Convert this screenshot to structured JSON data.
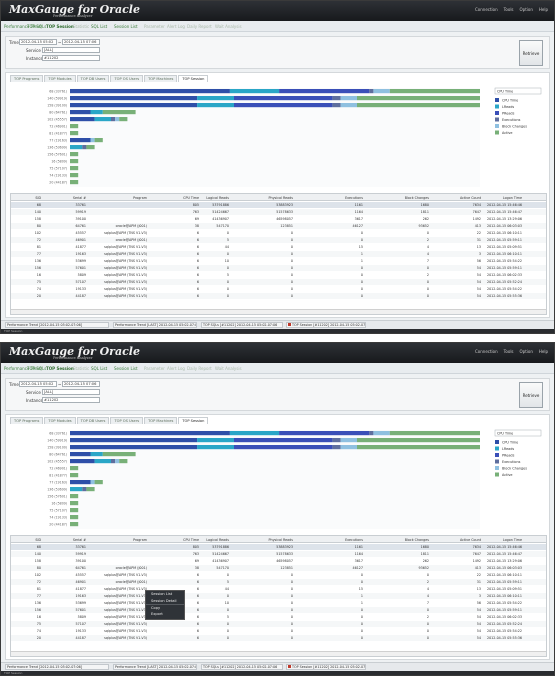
{
  "app": {
    "logo_text": "MaxGauge for Oracle",
    "logo_subtitle": "Performance Analyzer",
    "top_menu": [
      "Connection",
      "Tools",
      "Option",
      "Help"
    ]
  },
  "nav": {
    "items": [
      "Performance Trend",
      "TOP SQLs",
      "TOP Session",
      "Statistic",
      "SQL List",
      "Session List",
      "Parameter",
      "Alert Log",
      "Daily Report",
      "Wait Analysis"
    ],
    "active_index": 2,
    "dim_indexes": [
      3,
      6,
      7,
      8,
      9
    ]
  },
  "filter": {
    "time_label": "Time",
    "time_from": "2012-04-15 05:02",
    "time_to": "2012-04-15 07:06",
    "service_label": "Service",
    "service_value": "[ALL]",
    "instance_label": "Instance",
    "instance_value": "#11202",
    "retrieve_label": "Retrieve"
  },
  "sub_tabs": [
    "TOP Programs",
    "TOP Modules",
    "TOP DB Users",
    "TOP OS Users",
    "TOP Machines",
    "TOP Session"
  ],
  "sub_tab_active": 5,
  "legend": {
    "dropdown": "CPU Time",
    "items": [
      {
        "label": "CPU Time",
        "color": "#2e4fa8"
      },
      {
        "label": "LReads",
        "color": "#2aa6c7"
      },
      {
        "label": "PReads",
        "color": "#3a4fb8"
      },
      {
        "label": "Executions",
        "color": "#5e6e9e"
      },
      {
        "label": "Block Changes",
        "color": "#8fc0e0"
      },
      {
        "label": "Active",
        "color": "#78b078"
      }
    ]
  },
  "chart_data": {
    "type": "bar",
    "orientation": "horizontal-stacked",
    "categories": [
      "68 (33761)",
      "140 (59919)",
      "158 (39100)",
      "80 (64761)",
      "102 (45557)",
      "72 (46901)",
      "81 (41877)",
      "77 (19163)",
      "136 (53699)",
      "156 (57601)",
      "16 (5809)",
      "75 (57107)",
      "74 (19133)",
      "20 (44187)"
    ],
    "series": [
      {
        "name": "CPU Time",
        "color": "#2e4fa8",
        "values": [
          39,
          31,
          31,
          5,
          6,
          0,
          0,
          5,
          0,
          0,
          0,
          0,
          0,
          0
        ]
      },
      {
        "name": "LReads",
        "color": "#2aa6c7",
        "values": [
          12,
          9,
          9,
          3,
          4,
          0,
          0,
          0,
          3,
          0,
          0,
          0,
          0,
          0
        ]
      },
      {
        "name": "PReads",
        "color": "#3a4fb8",
        "values": [
          22,
          24,
          24,
          0,
          0,
          0,
          0,
          0,
          0,
          0,
          0,
          0,
          0,
          0
        ]
      },
      {
        "name": "Executions",
        "color": "#5e6e9e",
        "values": [
          1,
          2,
          2,
          0,
          1,
          0,
          0,
          0,
          1,
          0,
          0,
          0,
          0,
          0
        ]
      },
      {
        "name": "Block Changes",
        "color": "#8fc0e0",
        "values": [
          4,
          4,
          4,
          0,
          1,
          0,
          0,
          1,
          0,
          0,
          0,
          0,
          0,
          0
        ]
      },
      {
        "name": "Active",
        "color": "#78b078",
        "values": [
          22,
          30,
          30,
          8,
          2,
          2,
          2,
          2,
          2,
          2,
          2,
          2,
          2,
          2
        ]
      }
    ],
    "xlim": [
      0,
      100
    ],
    "legend_position": "right"
  },
  "table": {
    "columns": [
      "SID",
      "Serial #",
      "Program",
      "CPU Time",
      "Logical Reads",
      "Physical Reads",
      "Executions",
      "Block Changes",
      "Active Count",
      "Logon Time"
    ],
    "rows": [
      [
        "68",
        "33761",
        "",
        "805",
        "53791886",
        "53883923",
        "1161",
        "1680",
        "7634",
        "2012-04-15 15:46:46"
      ],
      [
        "140",
        "59919",
        "",
        "763",
        "51424667",
        "51578633",
        "1164",
        "1811",
        "7647",
        "2012-04-15 15:46:47"
      ],
      [
        "158",
        "39100",
        "",
        "69",
        "41436907",
        "46598057",
        "3617",
        "262",
        "1492",
        "2012-04-15 13:29:06"
      ],
      [
        "80",
        "64761",
        "oracle@APM (J001)",
        "38",
        "547170",
        "123851",
        "46127",
        "93652",
        "413",
        "2012-04-15 06:03:03"
      ],
      [
        "102",
        "45557",
        "sqlplus@APM (TNS V1-V3)",
        "6",
        "0",
        "0",
        "0",
        "0",
        "22",
        "2012-04-15 06:10:11"
      ],
      [
        "72",
        "46901",
        "oracle@APM (J001)",
        "6",
        "5",
        "0",
        "0",
        "2",
        "31",
        "2012-04-15 05:59:11"
      ],
      [
        "81",
        "41877",
        "sqlplus@APM (TNS V1-V3)",
        "6",
        "44",
        "0",
        "15",
        "4",
        "13",
        "2012-04-15 05:09:51"
      ],
      [
        "77",
        "19163",
        "sqlplus@APM (TNS V1-V3)",
        "6",
        "0",
        "0",
        "1",
        "4",
        "3",
        "2012-04-15 06:10:11"
      ],
      [
        "136",
        "53699",
        "sqlplus@APM (TNS V1-V3)",
        "6",
        "10",
        "0",
        "1",
        "7",
        "56",
        "2012-04-15 05:54:22"
      ],
      [
        "156",
        "57601",
        "sqlplus@APM (TNS V1-V3)",
        "6",
        "0",
        "0",
        "0",
        "0",
        "54",
        "2012-04-15 05:59:11"
      ],
      [
        "16",
        "5809",
        "sqlplus@APM (TNS V1-V3)",
        "6",
        "5",
        "0",
        "0",
        "2",
        "54",
        "2012-04-15 06:02:33"
      ],
      [
        "75",
        "57107",
        "sqlplus@APM (TNS V1-V3)",
        "6",
        "0",
        "0",
        "0",
        "0",
        "54",
        "2012-04-15 05:52:24"
      ],
      [
        "74",
        "19133",
        "sqlplus@APM (TNS V1-V3)",
        "6",
        "0",
        "0",
        "0",
        "0",
        "54",
        "2012-04-15 05:54:22"
      ],
      [
        "20",
        "44187",
        "sqlplus@APM (TNS V1-V3)",
        "6",
        "0",
        "0",
        "0",
        "0",
        "54",
        "2012-04-15 05:55:36"
      ]
    ]
  },
  "taskbar": [
    "Performance Trend [2012-04-15 05:02-07:06]",
    "Performance Trend [LAST] 2012-04-15 05:02-07:06",
    "TOP SQLs [#11202] 2012-04-15 05:02-07:06",
    "TOP Session [#11202] 2012-04-15 05:02-07:06"
  ],
  "status_text": "TOP Session",
  "context_menu": [
    "Session List",
    "Session Detail",
    "Copy",
    "Export"
  ]
}
